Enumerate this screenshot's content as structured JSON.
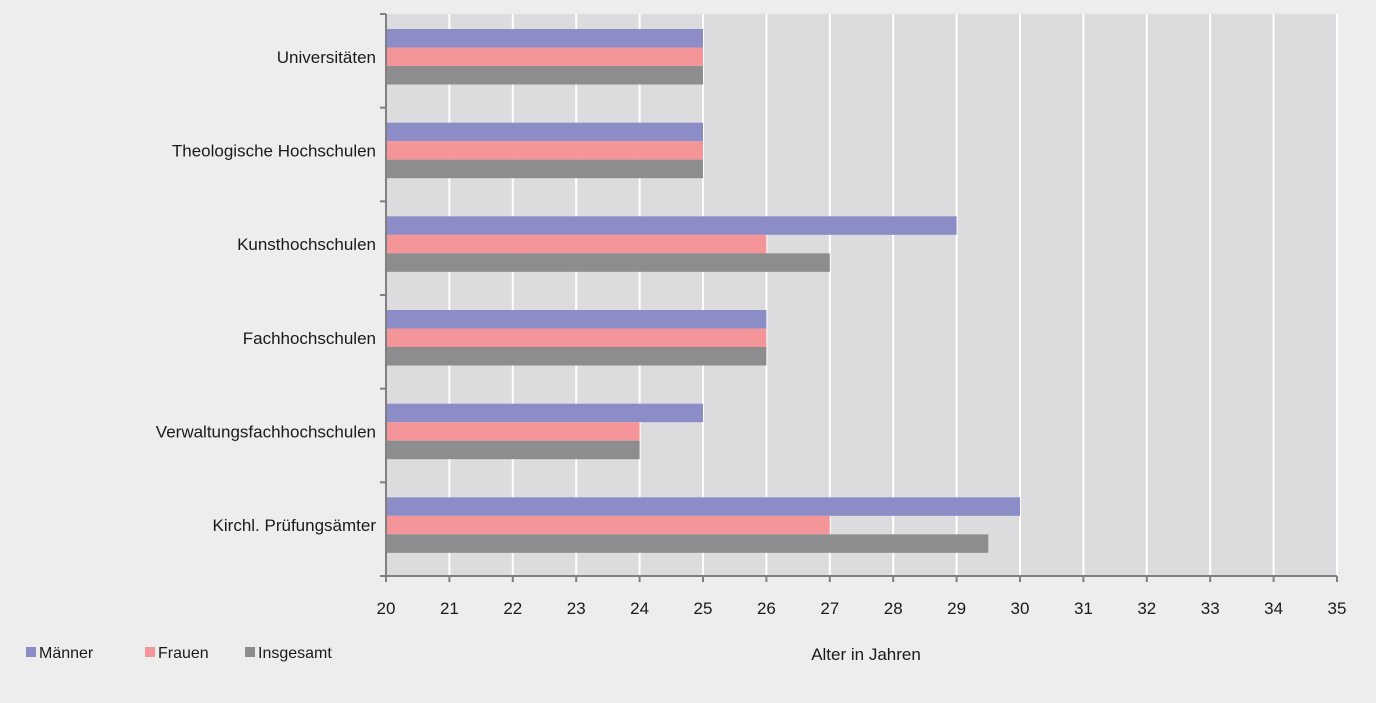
{
  "chart_data": {
    "type": "bar",
    "orientation": "horizontal",
    "categories": [
      "Universitäten",
      "Theologische Hochschulen",
      "Kunsthochschulen",
      "Fachhochschulen",
      "Verwaltungsfachhochschulen",
      "Kirchl. Prüfungsämter"
    ],
    "series": [
      {
        "name": "Männer",
        "color": "#8c8dc6",
        "values": [
          25,
          25,
          29,
          26,
          25,
          30
        ]
      },
      {
        "name": "Frauen",
        "color": "#f4959a",
        "values": [
          25,
          25,
          26,
          26,
          24,
          27
        ]
      },
      {
        "name": "Insgesamt",
        "color": "#8d8d8f",
        "values": [
          25,
          25,
          27,
          26,
          24,
          29.5
        ]
      }
    ],
    "xlabel": "Alter in Jahren",
    "xlim": [
      20,
      35
    ],
    "xticks": [
      "20",
      "21",
      "22",
      "23",
      "24",
      "25",
      "26",
      "27",
      "28",
      "29",
      "30",
      "31",
      "32",
      "33",
      "34",
      "35"
    ],
    "grid": true,
    "legend_position": "bottom-left",
    "colors": {
      "background": "#ededee",
      "plot_background": "#dcdcdf",
      "grid": "#ffffff",
      "axis": "#808080"
    }
  }
}
